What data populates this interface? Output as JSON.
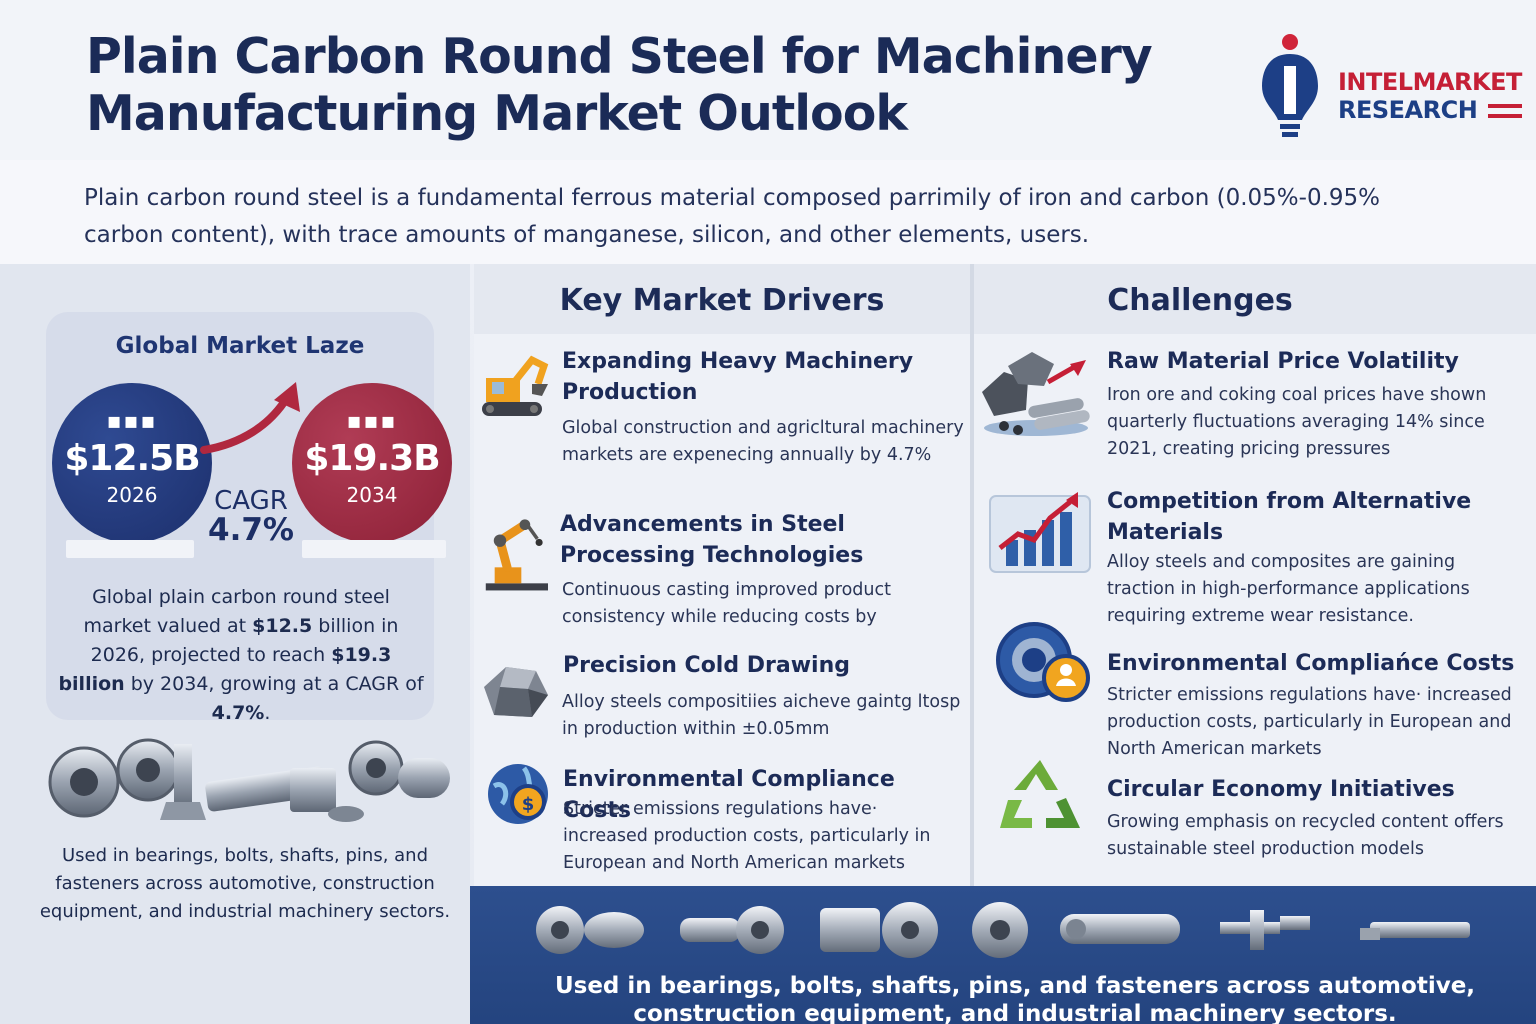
{
  "title": "Plain Carbon Round Steel for Machinery Manufacturing Market Outlook",
  "brand": {
    "line1": "INTELMARKET",
    "line2": "RESEARCH"
  },
  "intro": "Plain carbon round steel is a fundamental ferrous material composed parrimily of iron and carbon (0.05%-0.95% carbon content), with trace amounts of manganese, silicon, and other elements, users.",
  "market": {
    "title": "Global Market Laze",
    "start": {
      "dots": "▪▪▪",
      "value": "$12.5B",
      "year": "2026"
    },
    "end": {
      "dots": "▪▪▪",
      "value": "$19.3B",
      "year": "2034"
    },
    "cagr_label": "CAGR",
    "cagr_value": "4.7%",
    "desc_1": "Global plain carbon round steel market valued at ",
    "desc_b1": "$12.5",
    "desc_2": " billion in 2026, projected to reach ",
    "desc_b2": "$19.3 billion",
    "desc_3": " by 2034, growing at a CAGR of ",
    "desc_b3": "4.7%",
    "desc_4": ".",
    "usage": "Used in bearings, bolts, shafts, pins, and fasteners across automotive, construction equipment, and industrial machinery sectors."
  },
  "drivers": {
    "heading": "Key Market Drivers",
    "items": [
      {
        "icon": "excavator-icon",
        "title": "Expanding Heavy Machinery Production",
        "text": "Global construction and agricltural machinery markets are expenecing annually by 4.7%"
      },
      {
        "icon": "robot-arm-icon",
        "title": "Advancements in Steel Processing Technologies",
        "text": "Continuous casting improved product consistency while reducing costs by"
      },
      {
        "icon": "steel-block-icon",
        "title": "Precision Cold Drawing",
        "text": "Alloy steels compositiies aicheve gaintg ltosp in production within ±0.05mm"
      },
      {
        "icon": "globe-gear-icon",
        "title": "Environmental Compliance Costs",
        "text": "Stricter emissions regulations have· increased production costs, particularly in European and North American markets"
      }
    ]
  },
  "challenges": {
    "heading": "Challenges",
    "items": [
      {
        "icon": "raw-material-icon",
        "title": "Raw Material Price Volatility",
        "text": "Iron ore and coking coal prices have shown quarterly fluctuations averaging 14% since 2021, creating pricing pressures"
      },
      {
        "icon": "bar-chart-icon",
        "title": "Competition from Alternative Materials",
        "text": "Alloy steels and composites are gaining traction in high-performance applications requiring extreme wear resistance."
      },
      {
        "icon": "gear-person-icon",
        "title": "Environmental Compliańce Costs",
        "text": "Stricter emissions regulations have· increased production costs, particularly in European and North American markets"
      },
      {
        "icon": "recycle-icon",
        "title": "Circular Economy Initiatives",
        "text": "Growing emphasis on recycled content offers sustainable steel production models"
      }
    ]
  },
  "bottom_usage": "Used in bearings, bolts, shafts, pins, and fasteners across automotive, construction equipment, and industrial machinery sectors.",
  "colors": {
    "navy": "#1c2f6c",
    "crimson": "#8c2036",
    "band": "#24447f"
  }
}
